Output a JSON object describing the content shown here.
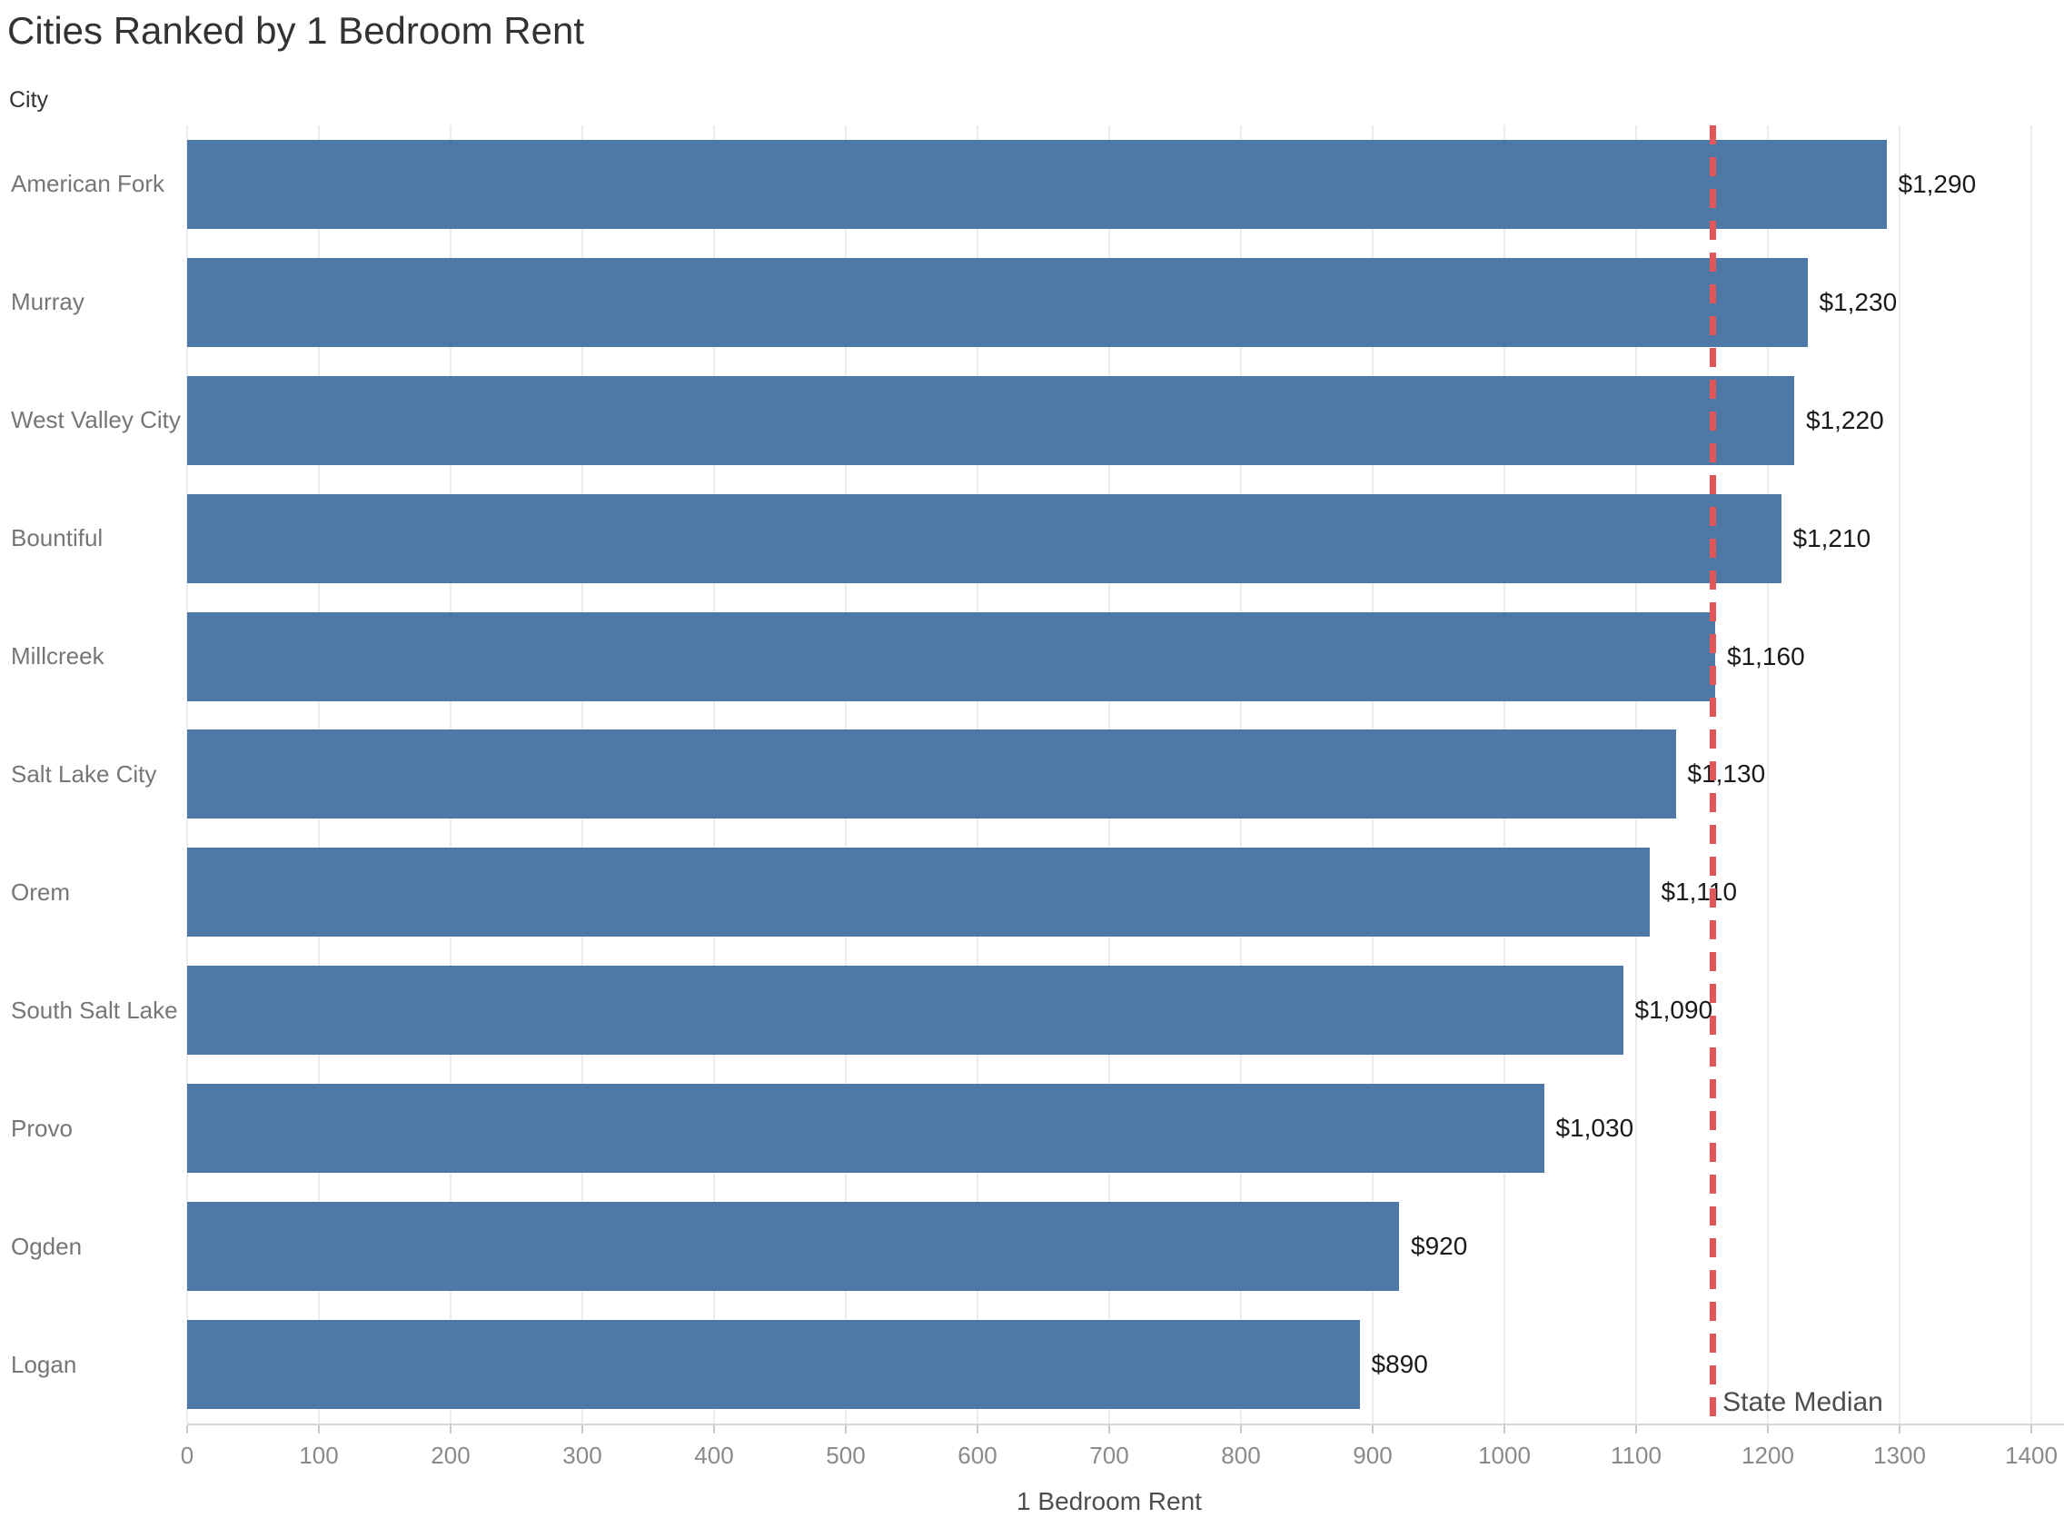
{
  "chart_data": {
    "type": "bar",
    "orientation": "horizontal",
    "title": "Cities Ranked by 1 Bedroom Rent",
    "ylabel": "City",
    "xlabel": "1 Bedroom Rent",
    "categories": [
      "American Fork",
      "Murray",
      "West Valley City",
      "Bountiful",
      "Millcreek",
      "Salt Lake City",
      "Orem",
      "South Salt Lake",
      "Provo",
      "Ogden",
      "Logan"
    ],
    "values": [
      1290,
      1230,
      1220,
      1210,
      1160,
      1130,
      1110,
      1090,
      1030,
      920,
      890
    ],
    "value_labels": [
      "$1,290",
      "$1,230",
      "$1,220",
      "$1,210",
      "$1,160",
      "$1,130",
      "$1,110",
      "$1,090",
      "$1,030",
      "$920",
      "$890"
    ],
    "xlim": [
      0,
      1400
    ],
    "xticks": [
      0,
      100,
      200,
      300,
      400,
      500,
      600,
      700,
      800,
      900,
      1000,
      1100,
      1200,
      1300,
      1400
    ],
    "grid": "vertical",
    "legend": "none",
    "bar_color": "#4e79a7",
    "reference_line": {
      "label": "State Median",
      "value": 1158,
      "style": "dashed",
      "color": "#e15759"
    }
  }
}
